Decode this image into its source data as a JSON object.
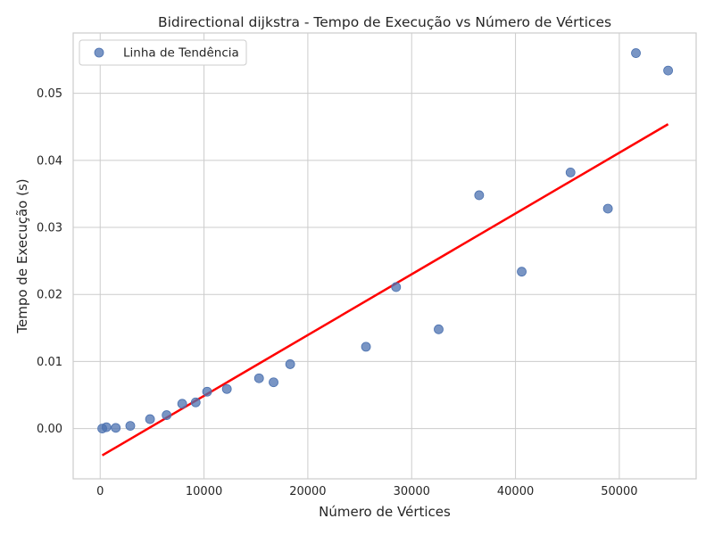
{
  "chart_data": {
    "type": "scatter",
    "title": "Bidirectional dijkstra - Tempo de Execução vs Número de Vértices",
    "xlabel": "Número de Vértices",
    "ylabel": "Tempo de Execução (s)",
    "xlim": [
      -2600,
      57400
    ],
    "ylim": [
      -0.0075,
      0.059
    ],
    "x_ticks": [
      0,
      10000,
      20000,
      30000,
      40000,
      50000
    ],
    "x_tick_labels": [
      "0",
      "10000",
      "20000",
      "30000",
      "40000",
      "50000"
    ],
    "y_ticks": [
      0.0,
      0.01,
      0.02,
      0.03,
      0.04,
      0.05
    ],
    "y_tick_labels": [
      "0.00",
      "0.01",
      "0.02",
      "0.03",
      "0.04",
      "0.05"
    ],
    "grid": true,
    "legend": {
      "position": "top-left",
      "entries": [
        "Linha de Tendência"
      ]
    },
    "series": [
      {
        "kind": "scatter",
        "name": "Linha de Tendência",
        "color": "#4c72b0",
        "x": [
          200,
          600,
          1500,
          2900,
          4800,
          6400,
          7900,
          9200,
          10300,
          12200,
          15300,
          16700,
          18300,
          25600,
          28500,
          32600,
          36500,
          40600,
          45300,
          48900,
          51600,
          54700
        ],
        "y": [
          0.0,
          0.0002,
          0.0001,
          0.0004,
          0.0014,
          0.002,
          0.0037,
          0.0039,
          0.0055,
          0.0059,
          0.0075,
          0.0069,
          0.0096,
          0.0122,
          0.0211,
          0.0148,
          0.0348,
          0.0234,
          0.0382,
          0.0328,
          0.056,
          0.0534
        ]
      },
      {
        "kind": "line",
        "color": "#ff0000",
        "x": [
          200,
          54700
        ],
        "y": [
          -0.004,
          0.0454
        ]
      }
    ]
  }
}
